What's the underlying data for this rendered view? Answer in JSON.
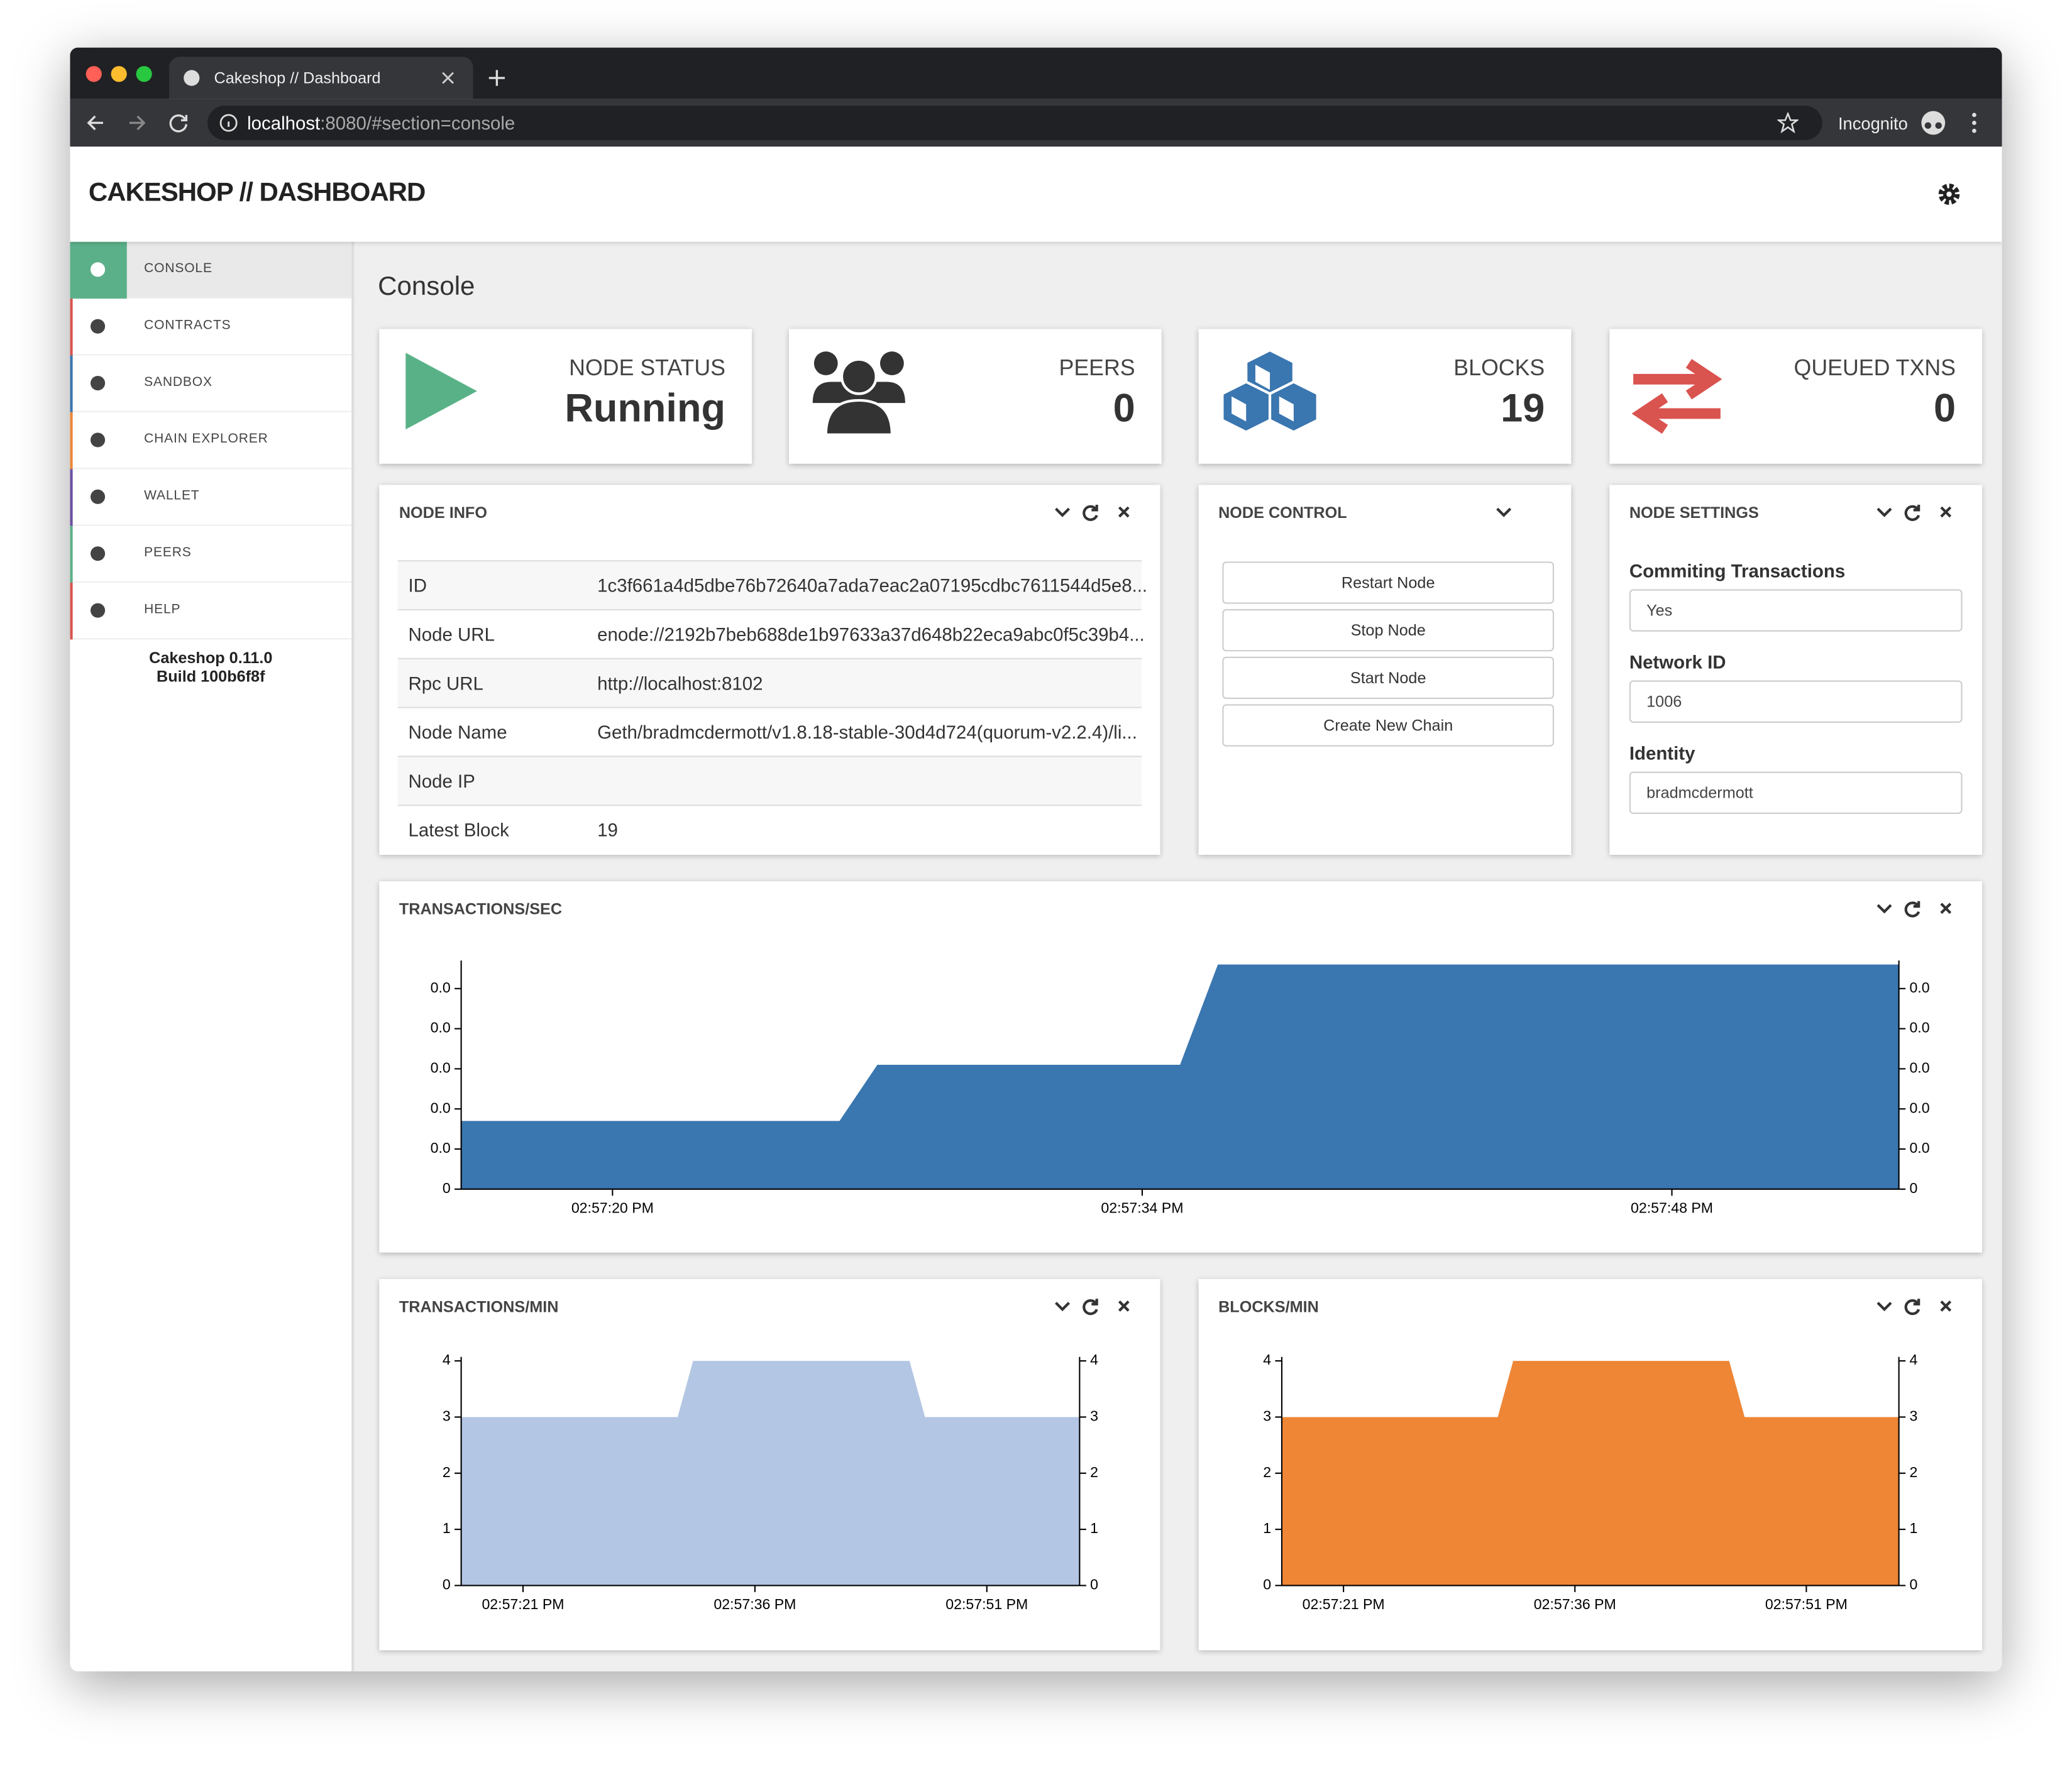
{
  "browser": {
    "tab_title": "Cakeshop // Dashboard",
    "url_host": "localhost",
    "url_rest": ":8080/#section=console",
    "profile": "Incognito"
  },
  "header": {
    "title": "CAKESHOP // DASHBOARD"
  },
  "sidebar": {
    "items": [
      "CONSOLE",
      "CONTRACTS",
      "SANDBOX",
      "CHAIN EXPLORER",
      "WALLET",
      "PEERS",
      "HELP"
    ],
    "version": "Cakeshop 0.11.0",
    "build": "Build 100b6f8f"
  },
  "page_title": "Console",
  "stats": [
    {
      "label": "NODE STATUS",
      "value": "Running"
    },
    {
      "label": "PEERS",
      "value": 0
    },
    {
      "label": "BLOCKS",
      "value": 19
    },
    {
      "label": "QUEUED TXNS",
      "value": 0
    }
  ],
  "node_info": {
    "title": "NODE INFO",
    "rows": [
      [
        "ID",
        "1c3f661a4d5dbe76b72640a7ada7eac2a07195cdbc7611544d5e8..."
      ],
      [
        "Node URL",
        "enode://2192b7beb688de1b97633a37d648b22eca9abc0f5c39b4..."
      ],
      [
        "Rpc URL",
        "http://localhost:8102"
      ],
      [
        "Node Name",
        "Geth/bradmcdermott/v1.8.18-stable-30d4d724(quorum-v2.2.4)/li..."
      ],
      [
        "Node IP"
      ],
      [
        "Latest Block",
        19
      ]
    ]
  },
  "node_control": {
    "title": "NODE CONTROL",
    "buttons": [
      "Restart Node",
      "Stop Node",
      "Start Node",
      "Create New Chain"
    ]
  },
  "node_settings": {
    "title": "NODE SETTINGS",
    "fields": [
      {
        "label": "Commiting Transactions",
        "value": "Yes"
      },
      {
        "label": "Network ID",
        "value": 1006
      },
      {
        "label": "Identity",
        "value": "bradmcdermott"
      }
    ]
  },
  "chart_data": [
    {
      "type": "area",
      "title": "TRANSACTIONS/SEC",
      "color": "#3a76af",
      "x": [
        "02:57:16 PM",
        "02:57:26 PM",
        "02:57:27 PM",
        "02:57:35 PM",
        "02:57:36 PM",
        "02:57:54 PM"
      ],
      "values": [
        0.017,
        0.017,
        0.031,
        0.031,
        0.056,
        0.056
      ],
      "xlim": [
        "02:57:16 PM",
        "02:57:54 PM"
      ],
      "xticks": [
        "02:57:20 PM",
        "02:57:34 PM",
        "02:57:48 PM"
      ],
      "ylim": [
        0,
        0.056
      ],
      "yticks": [
        0,
        {
          "value": 0.01,
          "label": "0.0"
        },
        {
          "value": 0.02,
          "label": "0.0"
        },
        {
          "value": 0.03,
          "label": "0.0"
        },
        {
          "value": 0.04,
          "label": "0.0"
        },
        {
          "value": 0.05,
          "label": "0.0"
        }
      ]
    },
    {
      "type": "area",
      "title": "TRANSACTIONS/MIN",
      "color": "#b3c6e3",
      "x": [
        "02:57:17 PM",
        "02:57:31 PM",
        "02:57:32 PM",
        "02:57:46 PM",
        "02:57:47 PM",
        "02:57:57 PM"
      ],
      "values": [
        3,
        3,
        4,
        4,
        3,
        3
      ],
      "xlim": [
        "02:57:17 PM",
        "02:57:57 PM"
      ],
      "xticks": [
        "02:57:21 PM",
        "02:57:36 PM",
        "02:57:51 PM"
      ],
      "ylim": [
        0,
        4
      ],
      "yticks": [
        0,
        1,
        2,
        3,
        4
      ]
    },
    {
      "type": "area",
      "title": "BLOCKS/MIN",
      "color": "#ee8636",
      "x": [
        "02:57:17 PM",
        "02:57:31 PM",
        "02:57:32 PM",
        "02:57:46 PM",
        "02:57:47 PM",
        "02:57:57 PM"
      ],
      "values": [
        3,
        3,
        4,
        4,
        3,
        3
      ],
      "xlim": [
        "02:57:17 PM",
        "02:57:57 PM"
      ],
      "xticks": [
        "02:57:21 PM",
        "02:57:36 PM",
        "02:57:51 PM"
      ],
      "ylim": [
        0,
        4
      ],
      "yticks": [
        0,
        1,
        2,
        3,
        4
      ]
    }
  ]
}
